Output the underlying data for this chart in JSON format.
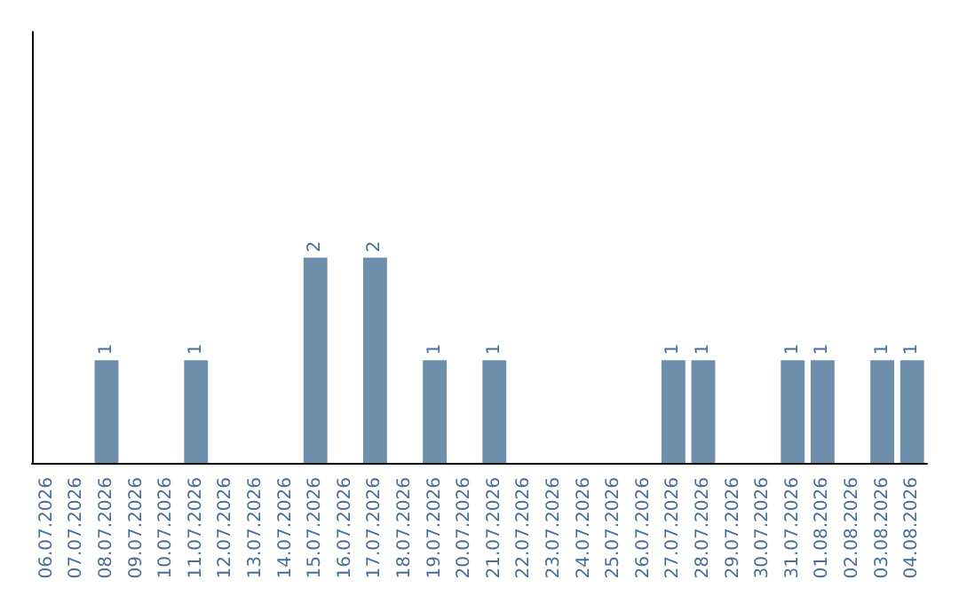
{
  "chart_data": {
    "type": "bar",
    "categories": [
      "06.07.2026",
      "07.07.2026",
      "08.07.2026",
      "09.07.2026",
      "10.07.2026",
      "11.07.2026",
      "12.07.2026",
      "13.07.2026",
      "14.07.2026",
      "15.07.2026",
      "16.07.2026",
      "17.07.2026",
      "18.07.2026",
      "19.07.2026",
      "20.07.2026",
      "21.07.2026",
      "22.07.2026",
      "23.07.2026",
      "24.07.2026",
      "25.07.2026",
      "26.07.2026",
      "27.07.2026",
      "28.07.2026",
      "29.07.2026",
      "30.07.2026",
      "31.07.2026",
      "01.08.2026",
      "02.08.2026",
      "03.08.2026",
      "04.08.2026"
    ],
    "values": [
      0,
      0,
      1,
      0,
      0,
      1,
      0,
      0,
      0,
      2,
      0,
      2,
      0,
      1,
      0,
      1,
      0,
      0,
      0,
      0,
      0,
      1,
      1,
      0,
      0,
      1,
      1,
      0,
      1,
      1
    ],
    "value_labels": [
      null,
      null,
      "1",
      null,
      null,
      "1",
      null,
      null,
      null,
      "2",
      null,
      "2",
      null,
      "1",
      null,
      "1",
      null,
      null,
      null,
      null,
      null,
      "1",
      "1",
      null,
      null,
      "1",
      "1",
      null,
      "1",
      "1"
    ],
    "color": "#6e8fac",
    "ylim": [
      0,
      4.2
    ],
    "tick_labels": "x",
    "grid": false
  }
}
